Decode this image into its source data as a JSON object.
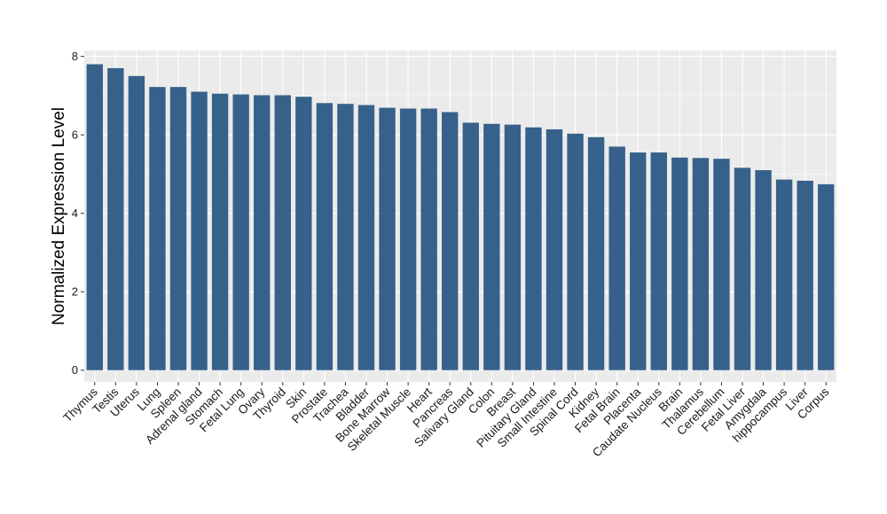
{
  "chart_data": {
    "type": "bar",
    "ylabel": "Normalized Expression Level",
    "xlabel": "",
    "ylim": [
      -0.3,
      8.15
    ],
    "yticks": [
      0,
      2,
      4,
      6,
      8
    ],
    "grid": true,
    "bar_color": "#36618a",
    "panel_color": "#ebebeb",
    "categories": [
      "Thymus",
      "Testis",
      "Uterus",
      "Lung",
      "Spleen",
      "Adrenal gland",
      "Stomach",
      "Fetal Lung",
      "Ovary",
      "Thyroid",
      "Skin",
      "Prostate",
      "Trachea",
      "Bladder",
      "Bone Marrow",
      "Skeletal Muscle",
      "Heart",
      "Pancreas",
      "Salivary Gland",
      "Colon",
      "Breast",
      "Pituitary Gland",
      "Small Intestine",
      "Spinal Cord",
      "Kidney",
      "Fetal Brain",
      "Placenta",
      "Caudate Nucleus",
      "Brain",
      "Thalamus",
      "Cerebellum",
      "Fetal Liver",
      "Amygdala",
      "hippocampus",
      "Liver",
      "Corpus"
    ],
    "values": [
      7.8,
      7.7,
      7.5,
      7.22,
      7.22,
      7.1,
      7.05,
      7.03,
      7.01,
      7.01,
      6.97,
      6.81,
      6.79,
      6.76,
      6.69,
      6.67,
      6.67,
      6.58,
      6.31,
      6.28,
      6.26,
      6.19,
      6.14,
      6.03,
      5.94,
      5.7,
      5.55,
      5.55,
      5.42,
      5.41,
      5.39,
      5.16,
      5.1,
      4.86,
      4.83,
      4.74
    ]
  }
}
